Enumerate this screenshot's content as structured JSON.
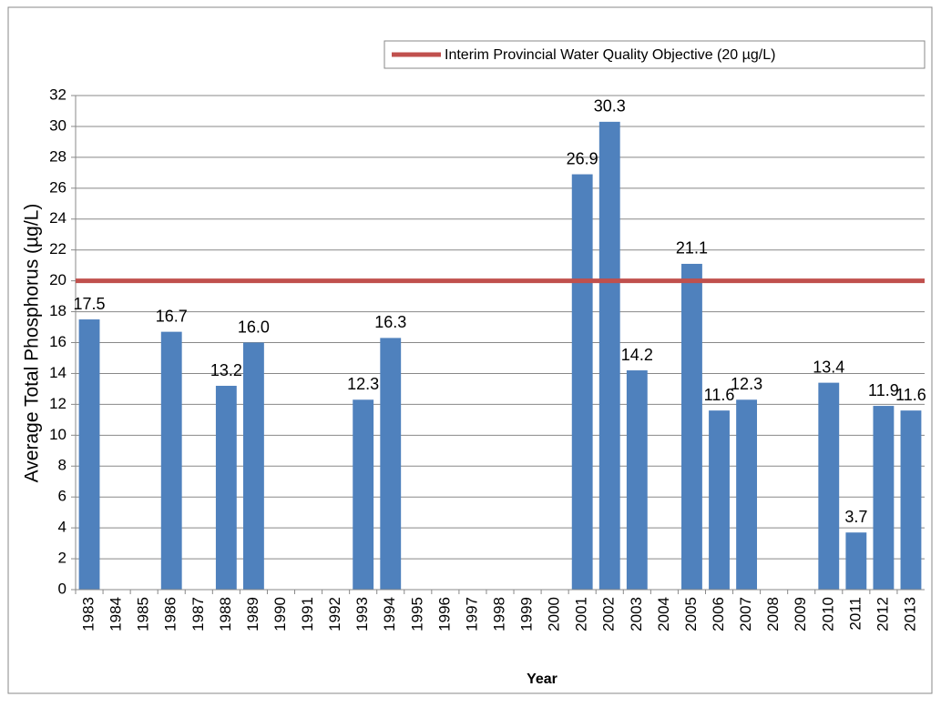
{
  "chart_data": {
    "type": "bar",
    "y_label": "Average Total Phosphorus (µg/L)",
    "x_label": "Year",
    "categories": [
      "1983",
      "1984",
      "1985",
      "1986",
      "1987",
      "1988",
      "1989",
      "1990",
      "1991",
      "1992",
      "1993",
      "1994",
      "1995",
      "1996",
      "1997",
      "1998",
      "1999",
      "2000",
      "2001",
      "2002",
      "2003",
      "2004",
      "2005",
      "2006",
      "2007",
      "2008",
      "2009",
      "2010",
      "2011",
      "2012",
      "2013"
    ],
    "values": [
      17.5,
      null,
      null,
      16.7,
      null,
      13.2,
      16.0,
      null,
      null,
      null,
      12.3,
      16.3,
      null,
      null,
      null,
      null,
      null,
      null,
      26.9,
      30.3,
      14.2,
      null,
      21.1,
      11.6,
      12.3,
      null,
      null,
      13.4,
      3.7,
      11.9,
      11.6
    ],
    "value_labels": [
      "17.5",
      null,
      null,
      "16.7",
      null,
      "13.2",
      "16.0",
      null,
      null,
      null,
      "12.3",
      "16.3",
      null,
      null,
      null,
      null,
      null,
      null,
      "26.9",
      "30.3",
      "14.2",
      null,
      "21.1",
      "11.6",
      "12.3",
      null,
      null,
      "13.4",
      "3.7",
      "11.9",
      "11.6"
    ],
    "color": "#4f81bd",
    "reference_line": {
      "name": "Interim Provincial Water Quality Objective (20 µg/L)",
      "value": 20,
      "color": "#c0504d"
    },
    "legend": "top-right",
    "ylim": [
      0,
      32
    ],
    "yticks": [
      0,
      2,
      4,
      6,
      8,
      10,
      12,
      14,
      16,
      18,
      20,
      22,
      24,
      26,
      28,
      30,
      32
    ],
    "grid": true
  }
}
